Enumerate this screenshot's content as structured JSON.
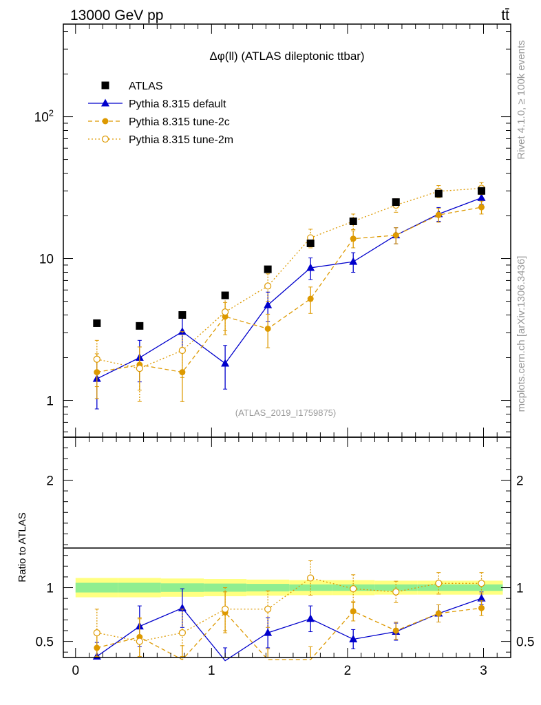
{
  "header": {
    "energy_label": "13000 GeV pp",
    "process_label": "tt̄"
  },
  "side_labels": {
    "rivet": "Rivet 4.1.0, ≥ 100k events",
    "source": "mcplots.cern.ch [arXiv:1306.3436]"
  },
  "chart_data": {
    "type": "line",
    "title": "Δφ(ll) (ATLAS dileptonic ttbar)",
    "analysis_id": "(ATLAS_2019_I1759875)",
    "xlabel": "",
    "ylabel": "",
    "xlim": [
      -0.09,
      3.2
    ],
    "ylim": [
      0.55,
      450
    ],
    "y_scale": "log",
    "x_ticks": [
      "0",
      "1",
      "2",
      "3"
    ],
    "y_ticks": [
      "1",
      "10",
      "10²"
    ],
    "x": [
      0.157,
      0.471,
      0.785,
      1.1,
      1.414,
      1.728,
      2.042,
      2.356,
      2.67,
      2.985
    ],
    "series": [
      {
        "name": "ATLAS",
        "color": "#000000",
        "marker": "square",
        "values": [
          3.5,
          3.35,
          4.0,
          5.5,
          8.4,
          12.8,
          18.3,
          25.0,
          28.7,
          30.0
        ],
        "errors": [
          0.12,
          0.12,
          0.14,
          0.18,
          0.25,
          0.4,
          0.55,
          0.8,
          0.9,
          1.0
        ]
      },
      {
        "name": "Pythia 8.315 default",
        "color": "#0000cc",
        "marker": "triangle",
        "line_style": "solid",
        "values": [
          1.42,
          2.0,
          3.05,
          1.82,
          4.7,
          8.6,
          9.5,
          14.6,
          20.6,
          26.8
        ],
        "errors": [
          0.55,
          0.65,
          0.75,
          0.62,
          1.1,
          1.5,
          1.5,
          1.9,
          2.3,
          2.7
        ]
      },
      {
        "name": "Pythia 8.315 tune-2c",
        "color": "#dd9900",
        "marker": "circle",
        "line_style": "dashed",
        "values": [
          1.58,
          1.78,
          1.58,
          3.9,
          3.2,
          5.2,
          13.8,
          14.6,
          20.3,
          23.0
        ],
        "errors": [
          0.55,
          0.6,
          0.6,
          1.0,
          0.85,
          1.1,
          1.9,
          1.9,
          2.3,
          2.4
        ]
      },
      {
        "name": "Pythia 8.315 tune-2m",
        "color": "#dd9900",
        "marker": "open-circle",
        "line_style": "dotted",
        "values": [
          1.95,
          1.68,
          2.25,
          4.2,
          6.4,
          14.0,
          18.3,
          23.8,
          29.8,
          31.3
        ],
        "errors": [
          0.7,
          0.7,
          0.8,
          1.1,
          1.4,
          2.1,
          2.3,
          2.6,
          2.9,
          3.0
        ]
      }
    ],
    "ratio_panel": {
      "ylabel": "Ratio to ATLAS",
      "ylim": [
        0.35,
        2.4
      ],
      "y_ticks": [
        "0.5",
        "1",
        "2"
      ],
      "reference_line": 1,
      "band_inner": [
        0.045,
        0.045,
        0.04,
        0.038,
        0.035,
        0.03,
        0.03,
        0.03,
        0.03,
        0.03
      ],
      "band_outer": [
        0.09,
        0.09,
        0.085,
        0.08,
        0.075,
        0.07,
        0.07,
        0.065,
        0.065,
        0.065
      ],
      "band_inner_color": "#90ee90",
      "band_outer_color": "#ffff80",
      "series": [
        {
          "name": "Pythia 8.315 default",
          "color": "#0000cc",
          "marker": "triangle",
          "line_style": "solid",
          "values": [
            0.36,
            0.64,
            0.81,
            0.32,
            0.58,
            0.71,
            0.52,
            0.59,
            0.76,
            0.9
          ],
          "errors": [
            0.13,
            0.19,
            0.18,
            0.12,
            0.14,
            0.12,
            0.09,
            0.08,
            0.08,
            0.06
          ]
        },
        {
          "name": "Pythia 8.315 tune-2c",
          "color": "#dd9900",
          "marker": "circle",
          "line_style": "dashed",
          "values": [
            0.44,
            0.54,
            0.33,
            0.77,
            0.33,
            0.33,
            0.78,
            0.6,
            0.76,
            0.81
          ],
          "errors": [
            0.15,
            0.18,
            0.13,
            0.19,
            0.1,
            0.12,
            0.09,
            0.08,
            0.08,
            0.07
          ]
        },
        {
          "name": "Pythia 8.315 tune-2m",
          "color": "#dd9900",
          "marker": "open-circle",
          "line_style": "dotted",
          "values": [
            0.58,
            0.5,
            0.58,
            0.8,
            0.8,
            1.09,
            0.99,
            0.96,
            1.04,
            1.04
          ],
          "errors": [
            0.22,
            0.21,
            0.22,
            0.2,
            0.17,
            0.16,
            0.13,
            0.1,
            0.1,
            0.1
          ]
        }
      ]
    }
  }
}
